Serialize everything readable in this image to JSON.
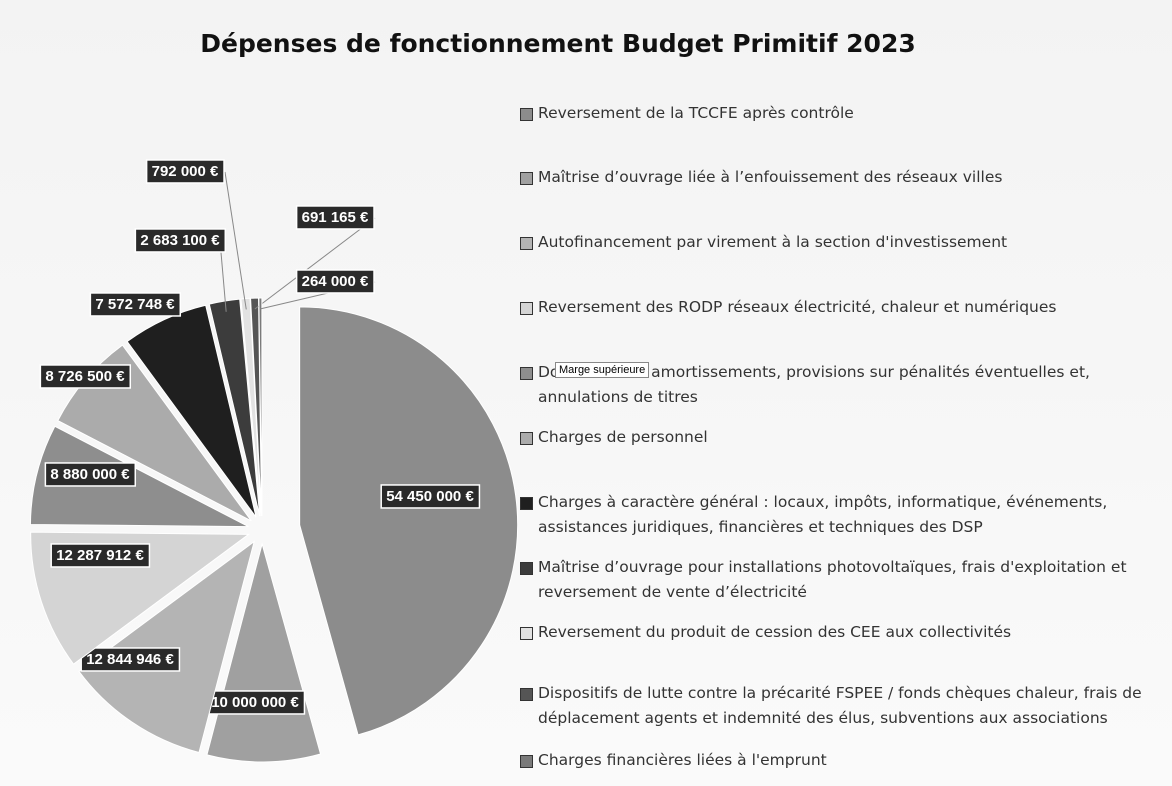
{
  "chart_data": {
    "type": "pie",
    "title": "Dépenses de fonctionnement Budget Primitif 2023",
    "categories": [
      "Reversement de la TCCFE après contrôle",
      "Maîtrise d’ouvrage liée à l’enfouissement des réseaux villes",
      "Autofinancement par virement à la section d'investissement",
      "Reversement des RODP réseaux électricité, chaleur et numériques",
      "Dotations aux amortissements, provisions sur pénalités éventuelles et, annulations de titres",
      "Charges de personnel",
      "Charges à caractère général : locaux, impôts, informatique, événements, assistances juridiques, financières et techniques des DSP",
      "Maîtrise d’ouvrage pour installations photovoltaïques, frais d'exploitation et reversement de vente d’électricité",
      "Reversement du produit de cession des CEE aux collectivités",
      "Dispositifs de lutte contre la précarité FSPEE / fonds chèques chaleur, frais de déplacement agents et indemnité des élus, subventions aux associations",
      "Charges financières liées à l'emprunt"
    ],
    "values": [
      54450000,
      10000000,
      12844946,
      12287912,
      8880000,
      8726500,
      7572748,
      2683100,
      792000,
      691165,
      264000
    ],
    "value_labels": [
      "54 450 000 €",
      "10 000 000 €",
      "12 844 946 €",
      "12 287 912 €",
      "8 880 000 €",
      "8 726 500 €",
      "7 572 748 €",
      "2 683 100 €",
      "792 000 €",
      "691 165 €",
      "264 000 €"
    ],
    "colors": [
      "#8c8c8c",
      "#a0a0a0",
      "#b4b4b4",
      "#d4d4d4",
      "#8e8e8e",
      "#ababab",
      "#1f1f1f",
      "#3c3c3c",
      "#e2e2e2",
      "#555555",
      "#7a7a7a"
    ]
  },
  "tooltip": "Marge supérieure"
}
